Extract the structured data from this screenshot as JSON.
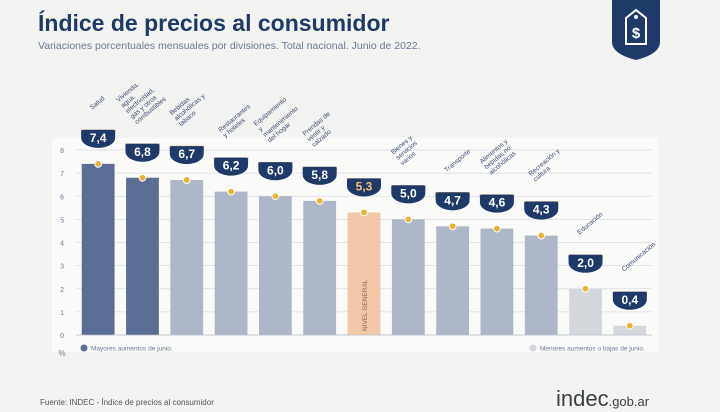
{
  "header": {
    "title": "Índice de precios al consumidor",
    "subtitle": "Variaciones porcentuales mensuales por divisiones. Total nacional. Junio de 2022."
  },
  "logo": {
    "icon": "price-tag-dollar-icon",
    "symbol": "$"
  },
  "legend": {
    "higher": "Mayores aumentos de junio.",
    "lower": "Menores aumentos o bajas de junio."
  },
  "footer": {
    "source": "Fuente: INDEC - Índice de precios al consumidor",
    "brand": "indec",
    "brand_suffix": ".gob.ar"
  },
  "colors": {
    "high": "#5b6d94",
    "mid": "#aeb7c7",
    "low": "#d3d6db",
    "general": "#f0c9aa",
    "badge": "#1f3a68",
    "marker": "#e8b33a",
    "accent": "#1f3a68"
  },
  "chart_data": {
    "type": "bar",
    "unit": "%",
    "ylim": [
      0,
      8
    ],
    "yticks": [
      0,
      1,
      2,
      3,
      4,
      5,
      6,
      7,
      8
    ],
    "grid": true,
    "categories": [
      "Salud",
      "Vivienda, agua, electricidad, gas y otros combustibles",
      "Bebidas alcohólicas y tabaco",
      "Restaurantes y hoteles",
      "Equipamiento y mantenimiento del hogar",
      "Prendas de vestir y calzado",
      "Nivel general",
      "Bienes y servicios varios",
      "Transporte",
      "Alimentos y bebidas no alcohólicas",
      "Recreación y cultura",
      "Educación",
      "Comunicación"
    ],
    "values": [
      7.4,
      6.8,
      6.7,
      6.2,
      6.0,
      5.8,
      5.3,
      5.0,
      4.7,
      4.6,
      4.3,
      2.0,
      0.4
    ],
    "value_labels": [
      "7,4",
      "6,8",
      "6,7",
      "6,2",
      "6,0",
      "5,8",
      "5,3",
      "5,0",
      "4,7",
      "4,6",
      "4,3",
      "2,0",
      "0,4"
    ],
    "groups": [
      "high",
      "high",
      "mid",
      "mid",
      "mid",
      "mid",
      "general",
      "mid",
      "mid",
      "mid",
      "mid",
      "low",
      "low"
    ],
    "general_bar_label": "NIVEL GENERAL"
  }
}
